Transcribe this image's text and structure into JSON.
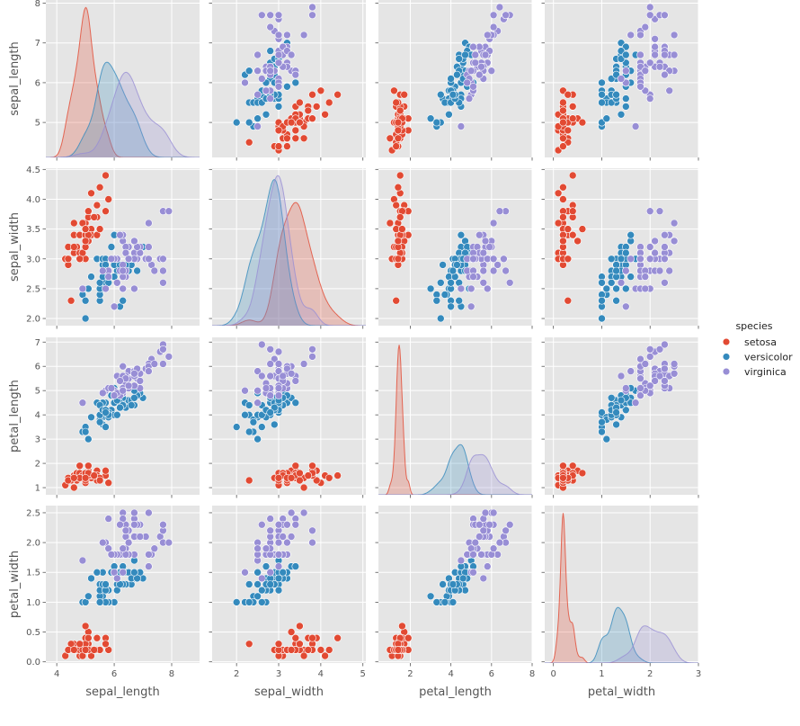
{
  "chart_data": {
    "type": "scatter",
    "kind": "pairplot",
    "diag_kind": "kde",
    "grid": true,
    "background": "#E5E5E5",
    "variables": [
      {
        "name": "sepal_length",
        "xlim": [
          3.62,
          8.97
        ],
        "ylim": [
          4.12,
          8.08
        ],
        "xticks": [
          4,
          6,
          8
        ],
        "xtick_labels": [
          "4",
          "6",
          "8"
        ],
        "yticks": [
          5,
          6,
          7,
          8
        ],
        "ytick_labels": [
          "5",
          "6",
          "7",
          "8"
        ]
      },
      {
        "name": "sepal_width",
        "xlim": [
          1.42,
          5.07
        ],
        "ylim": [
          1.88,
          4.52
        ],
        "xticks": [
          2,
          3,
          4,
          5
        ],
        "xtick_labels": [
          "2",
          "3",
          "4",
          "5"
        ],
        "yticks": [
          2.0,
          2.5,
          3.0,
          3.5,
          4.0,
          4.5
        ],
        "ytick_labels": [
          "2.0",
          "2.5",
          "3.0",
          "3.5",
          "4.0",
          "4.5"
        ]
      },
      {
        "name": "petal_length",
        "xlim": [
          0.43,
          8.0
        ],
        "ylim": [
          0.705,
          7.195
        ],
        "xticks": [
          2,
          4,
          6,
          8
        ],
        "xtick_labels": [
          "2",
          "4",
          "6",
          "8"
        ],
        "yticks": [
          1,
          2,
          3,
          4,
          5,
          6,
          7
        ],
        "ytick_labels": [
          "1",
          "2",
          "3",
          "4",
          "5",
          "6",
          "7"
        ]
      },
      {
        "name": "petal_width",
        "xlim": [
          -0.18,
          3.0
        ],
        "ylim": [
          -0.02,
          2.62
        ],
        "xticks": [
          0,
          1,
          2,
          3
        ],
        "xtick_labels": [
          "0",
          "1",
          "2",
          "3"
        ],
        "yticks": [
          0.0,
          0.5,
          1.0,
          1.5,
          2.0,
          2.5
        ],
        "ytick_labels": [
          "0.0",
          "0.5",
          "1.0",
          "1.5",
          "2.0",
          "2.5"
        ]
      }
    ],
    "legend": {
      "title": "species",
      "position": "right",
      "entries": [
        "setosa",
        "versicolor",
        "virginica"
      ]
    },
    "series": [
      {
        "name": "setosa",
        "color": "#E24A33",
        "points": [
          [
            5.1,
            3.5,
            1.4,
            0.2
          ],
          [
            4.9,
            3.0,
            1.4,
            0.2
          ],
          [
            4.7,
            3.2,
            1.3,
            0.2
          ],
          [
            4.6,
            3.1,
            1.5,
            0.2
          ],
          [
            5.0,
            3.6,
            1.4,
            0.2
          ],
          [
            5.4,
            3.9,
            1.7,
            0.4
          ],
          [
            4.6,
            3.4,
            1.4,
            0.3
          ],
          [
            5.0,
            3.4,
            1.5,
            0.2
          ],
          [
            4.4,
            2.9,
            1.4,
            0.2
          ],
          [
            4.9,
            3.1,
            1.5,
            0.1
          ],
          [
            5.4,
            3.7,
            1.5,
            0.2
          ],
          [
            4.8,
            3.4,
            1.6,
            0.2
          ],
          [
            4.8,
            3.0,
            1.4,
            0.1
          ],
          [
            4.3,
            3.0,
            1.1,
            0.1
          ],
          [
            5.8,
            4.0,
            1.2,
            0.2
          ],
          [
            5.7,
            4.4,
            1.5,
            0.4
          ],
          [
            5.4,
            3.9,
            1.3,
            0.4
          ],
          [
            5.1,
            3.5,
            1.4,
            0.3
          ],
          [
            5.7,
            3.8,
            1.7,
            0.3
          ],
          [
            5.1,
            3.8,
            1.5,
            0.3
          ],
          [
            5.4,
            3.4,
            1.7,
            0.2
          ],
          [
            5.1,
            3.7,
            1.5,
            0.4
          ],
          [
            4.6,
            3.6,
            1.0,
            0.2
          ],
          [
            5.1,
            3.3,
            1.7,
            0.5
          ],
          [
            4.8,
            3.4,
            1.9,
            0.2
          ],
          [
            5.0,
            3.0,
            1.6,
            0.2
          ],
          [
            5.0,
            3.4,
            1.6,
            0.4
          ],
          [
            5.2,
            3.5,
            1.5,
            0.2
          ],
          [
            5.2,
            3.4,
            1.4,
            0.2
          ],
          [
            4.7,
            3.2,
            1.6,
            0.2
          ],
          [
            4.8,
            3.1,
            1.6,
            0.2
          ],
          [
            5.4,
            3.4,
            1.5,
            0.4
          ],
          [
            5.2,
            4.1,
            1.5,
            0.1
          ],
          [
            5.5,
            4.2,
            1.4,
            0.2
          ],
          [
            4.9,
            3.1,
            1.5,
            0.2
          ],
          [
            5.0,
            3.2,
            1.2,
            0.2
          ],
          [
            5.5,
            3.5,
            1.3,
            0.2
          ],
          [
            4.9,
            3.6,
            1.4,
            0.1
          ],
          [
            4.4,
            3.0,
            1.3,
            0.2
          ],
          [
            5.1,
            3.4,
            1.5,
            0.2
          ],
          [
            5.0,
            3.5,
            1.3,
            0.3
          ],
          [
            4.5,
            2.3,
            1.3,
            0.3
          ],
          [
            4.4,
            3.2,
            1.3,
            0.2
          ],
          [
            5.0,
            3.5,
            1.6,
            0.6
          ],
          [
            5.1,
            3.8,
            1.9,
            0.4
          ],
          [
            4.8,
            3.0,
            1.4,
            0.3
          ],
          [
            5.1,
            3.8,
            1.6,
            0.2
          ],
          [
            4.6,
            3.2,
            1.4,
            0.2
          ],
          [
            5.3,
            3.7,
            1.5,
            0.2
          ],
          [
            5.0,
            3.3,
            1.4,
            0.2
          ]
        ]
      },
      {
        "name": "versicolor",
        "color": "#348ABD",
        "points": [
          [
            7.0,
            3.2,
            4.7,
            1.4
          ],
          [
            6.4,
            3.2,
            4.5,
            1.5
          ],
          [
            6.9,
            3.1,
            4.9,
            1.5
          ],
          [
            5.5,
            2.3,
            4.0,
            1.3
          ],
          [
            6.5,
            2.8,
            4.6,
            1.5
          ],
          [
            5.7,
            2.8,
            4.5,
            1.3
          ],
          [
            6.3,
            3.3,
            4.7,
            1.6
          ],
          [
            4.9,
            2.4,
            3.3,
            1.0
          ],
          [
            6.6,
            2.9,
            4.6,
            1.3
          ],
          [
            5.2,
            2.7,
            3.9,
            1.4
          ],
          [
            5.0,
            2.0,
            3.5,
            1.0
          ],
          [
            5.9,
            3.0,
            4.2,
            1.5
          ],
          [
            6.0,
            2.2,
            4.0,
            1.0
          ],
          [
            6.1,
            2.9,
            4.7,
            1.4
          ],
          [
            5.6,
            2.9,
            3.6,
            1.3
          ],
          [
            6.7,
            3.1,
            4.4,
            1.4
          ],
          [
            5.6,
            3.0,
            4.5,
            1.5
          ],
          [
            5.8,
            2.7,
            4.1,
            1.0
          ],
          [
            6.2,
            2.2,
            4.5,
            1.5
          ],
          [
            5.6,
            2.5,
            3.9,
            1.1
          ],
          [
            5.9,
            3.2,
            4.8,
            1.8
          ],
          [
            6.1,
            2.8,
            4.0,
            1.3
          ],
          [
            6.3,
            2.5,
            4.9,
            1.5
          ],
          [
            6.1,
            2.8,
            4.7,
            1.2
          ],
          [
            6.4,
            2.9,
            4.3,
            1.3
          ],
          [
            6.6,
            3.0,
            4.4,
            1.4
          ],
          [
            6.8,
            2.8,
            4.8,
            1.4
          ],
          [
            6.7,
            3.0,
            5.0,
            1.7
          ],
          [
            6.0,
            2.9,
            4.5,
            1.5
          ],
          [
            5.7,
            2.6,
            3.5,
            1.0
          ],
          [
            5.5,
            2.4,
            3.8,
            1.1
          ],
          [
            5.5,
            2.4,
            3.7,
            1.0
          ],
          [
            5.8,
            2.7,
            3.9,
            1.2
          ],
          [
            6.0,
            2.7,
            5.1,
            1.6
          ],
          [
            5.4,
            3.0,
            4.5,
            1.5
          ],
          [
            6.0,
            3.4,
            4.5,
            1.6
          ],
          [
            6.7,
            3.1,
            4.7,
            1.5
          ],
          [
            6.3,
            2.3,
            4.4,
            1.3
          ],
          [
            5.6,
            3.0,
            4.1,
            1.3
          ],
          [
            5.5,
            2.5,
            4.0,
            1.3
          ],
          [
            5.5,
            2.6,
            4.4,
            1.2
          ],
          [
            6.1,
            3.0,
            4.6,
            1.4
          ],
          [
            5.8,
            2.6,
            4.0,
            1.2
          ],
          [
            5.0,
            2.3,
            3.3,
            1.0
          ],
          [
            5.6,
            2.7,
            4.2,
            1.3
          ],
          [
            5.7,
            3.0,
            4.2,
            1.2
          ],
          [
            5.7,
            2.9,
            4.2,
            1.3
          ],
          [
            6.2,
            2.9,
            4.3,
            1.3
          ],
          [
            5.1,
            2.5,
            3.0,
            1.1
          ],
          [
            5.7,
            2.8,
            4.1,
            1.3
          ]
        ]
      },
      {
        "name": "virginica",
        "color": "#988ED5",
        "points": [
          [
            6.3,
            3.3,
            6.0,
            2.5
          ],
          [
            5.8,
            2.7,
            5.1,
            1.9
          ],
          [
            7.1,
            3.0,
            5.9,
            2.1
          ],
          [
            6.3,
            2.9,
            5.6,
            1.8
          ],
          [
            6.5,
            3.0,
            5.8,
            2.2
          ],
          [
            7.6,
            3.0,
            6.6,
            2.1
          ],
          [
            4.9,
            2.5,
            4.5,
            1.7
          ],
          [
            7.3,
            2.9,
            6.3,
            1.8
          ],
          [
            6.7,
            2.5,
            5.8,
            1.8
          ],
          [
            7.2,
            3.6,
            6.1,
            2.5
          ],
          [
            6.5,
            3.2,
            5.1,
            2.0
          ],
          [
            6.4,
            2.7,
            5.3,
            1.9
          ],
          [
            6.8,
            3.0,
            5.5,
            2.1
          ],
          [
            5.7,
            2.5,
            5.0,
            2.0
          ],
          [
            5.8,
            2.8,
            5.1,
            2.4
          ],
          [
            6.4,
            3.2,
            5.3,
            2.3
          ],
          [
            6.5,
            3.0,
            5.5,
            1.8
          ],
          [
            7.7,
            3.8,
            6.7,
            2.2
          ],
          [
            7.7,
            2.6,
            6.9,
            2.3
          ],
          [
            6.0,
            2.2,
            5.0,
            1.5
          ],
          [
            6.9,
            3.2,
            5.7,
            2.3
          ],
          [
            5.6,
            2.8,
            4.9,
            2.0
          ],
          [
            7.7,
            2.8,
            6.7,
            2.0
          ],
          [
            6.3,
            2.7,
            4.9,
            1.8
          ],
          [
            6.7,
            3.3,
            5.7,
            2.1
          ],
          [
            7.2,
            3.2,
            6.0,
            1.8
          ],
          [
            6.2,
            2.8,
            4.8,
            1.8
          ],
          [
            6.1,
            3.0,
            4.9,
            1.8
          ],
          [
            6.4,
            2.8,
            5.6,
            2.1
          ],
          [
            7.2,
            3.0,
            5.8,
            1.6
          ],
          [
            7.4,
            2.8,
            6.1,
            1.9
          ],
          [
            7.9,
            3.8,
            6.4,
            2.0
          ],
          [
            6.4,
            2.8,
            5.6,
            2.2
          ],
          [
            6.3,
            2.8,
            5.1,
            1.5
          ],
          [
            6.1,
            2.6,
            5.6,
            1.4
          ],
          [
            7.7,
            3.0,
            6.1,
            2.3
          ],
          [
            6.3,
            3.4,
            5.6,
            2.4
          ],
          [
            6.4,
            3.1,
            5.5,
            1.8
          ],
          [
            6.0,
            3.0,
            4.8,
            1.8
          ],
          [
            6.9,
            3.1,
            5.4,
            2.1
          ],
          [
            6.7,
            3.1,
            5.6,
            2.4
          ],
          [
            6.9,
            3.1,
            5.1,
            2.3
          ],
          [
            5.8,
            2.7,
            5.1,
            1.9
          ],
          [
            6.8,
            3.2,
            5.9,
            2.3
          ],
          [
            6.7,
            3.3,
            5.7,
            2.5
          ],
          [
            6.7,
            3.0,
            5.2,
            2.3
          ],
          [
            6.3,
            2.5,
            5.0,
            1.9
          ],
          [
            6.5,
            3.0,
            5.2,
            2.0
          ],
          [
            6.2,
            3.4,
            5.4,
            2.3
          ],
          [
            5.9,
            3.0,
            5.1,
            1.8
          ]
        ]
      }
    ]
  }
}
